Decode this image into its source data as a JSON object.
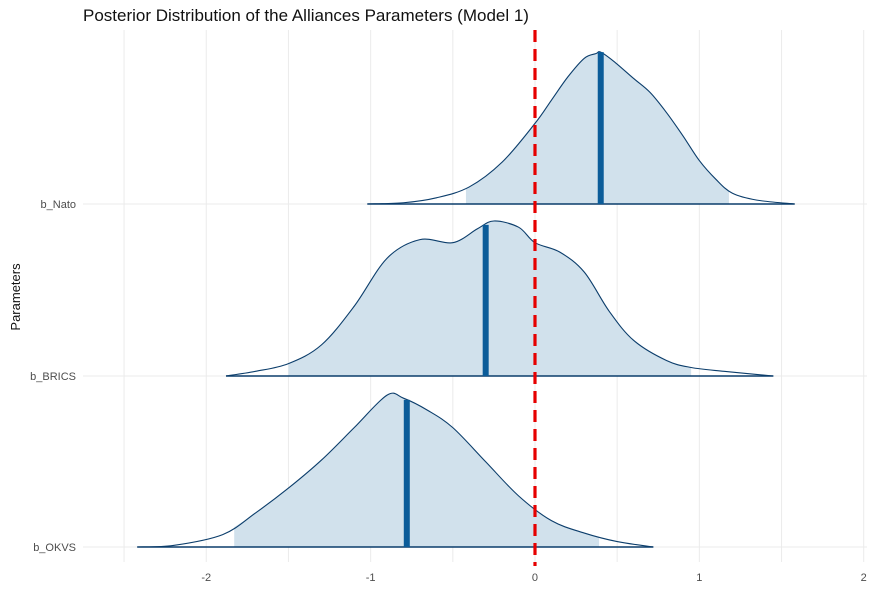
{
  "chart_data": {
    "type": "ridgeline-density",
    "title": "Posterior Distribution of the Alliances Parameters (Model 1)",
    "xlabel": "",
    "ylabel": "Parameters",
    "xlim": [
      -2.75,
      2.02
    ],
    "x_ticks": [
      -2,
      -1,
      0,
      1,
      2
    ],
    "reference_line": {
      "x": 0,
      "style": "dashed",
      "color": "#e60000"
    },
    "grid": true,
    "colors": {
      "fill": "#d1e1ec",
      "line": "#0b3d6b",
      "median": "#0b5c99"
    },
    "series": [
      {
        "name": "b_Nato",
        "median": 0.4,
        "ci": [
          -0.42,
          1.18
        ],
        "density": [
          [
            -1.02,
            0.0
          ],
          [
            -0.8,
            0.008
          ],
          [
            -0.6,
            0.04
          ],
          [
            -0.4,
            0.11
          ],
          [
            -0.2,
            0.27
          ],
          [
            0.0,
            0.52
          ],
          [
            0.1,
            0.67
          ],
          [
            0.2,
            0.82
          ],
          [
            0.3,
            0.94
          ],
          [
            0.37,
            0.97
          ],
          [
            0.4,
            0.98
          ],
          [
            0.48,
            0.92
          ],
          [
            0.6,
            0.81
          ],
          [
            0.7,
            0.72
          ],
          [
            0.8,
            0.59
          ],
          [
            0.9,
            0.44
          ],
          [
            1.0,
            0.28
          ],
          [
            1.1,
            0.16
          ],
          [
            1.2,
            0.07
          ],
          [
            1.35,
            0.025
          ],
          [
            1.58,
            0.0
          ]
        ]
      },
      {
        "name": "b_BRICS",
        "median": -0.3,
        "ci": [
          -1.5,
          0.95
        ],
        "density": [
          [
            -1.88,
            0.0
          ],
          [
            -1.7,
            0.03
          ],
          [
            -1.5,
            0.08
          ],
          [
            -1.3,
            0.2
          ],
          [
            -1.1,
            0.45
          ],
          [
            -0.9,
            0.76
          ],
          [
            -0.7,
            0.88
          ],
          [
            -0.5,
            0.86
          ],
          [
            -0.35,
            0.95
          ],
          [
            -0.25,
            1.0
          ],
          [
            -0.1,
            0.96
          ],
          [
            0.0,
            0.86
          ],
          [
            0.15,
            0.8
          ],
          [
            0.3,
            0.67
          ],
          [
            0.45,
            0.42
          ],
          [
            0.6,
            0.23
          ],
          [
            0.8,
            0.1
          ],
          [
            0.95,
            0.055
          ],
          [
            1.15,
            0.03
          ],
          [
            1.45,
            0.0
          ]
        ]
      },
      {
        "name": "b_OKVS",
        "median": -0.78,
        "ci": [
          -1.83,
          0.39
        ],
        "density": [
          [
            -2.42,
            0.0
          ],
          [
            -2.2,
            0.01
          ],
          [
            -1.9,
            0.08
          ],
          [
            -1.7,
            0.22
          ],
          [
            -1.5,
            0.38
          ],
          [
            -1.3,
            0.56
          ],
          [
            -1.1,
            0.77
          ],
          [
            -0.9,
            0.98
          ],
          [
            -0.8,
            0.96
          ],
          [
            -0.65,
            0.88
          ],
          [
            -0.5,
            0.77
          ],
          [
            -0.3,
            0.55
          ],
          [
            -0.1,
            0.33
          ],
          [
            0.1,
            0.17
          ],
          [
            0.3,
            0.09
          ],
          [
            0.5,
            0.035
          ],
          [
            0.72,
            0.0
          ]
        ]
      }
    ]
  }
}
